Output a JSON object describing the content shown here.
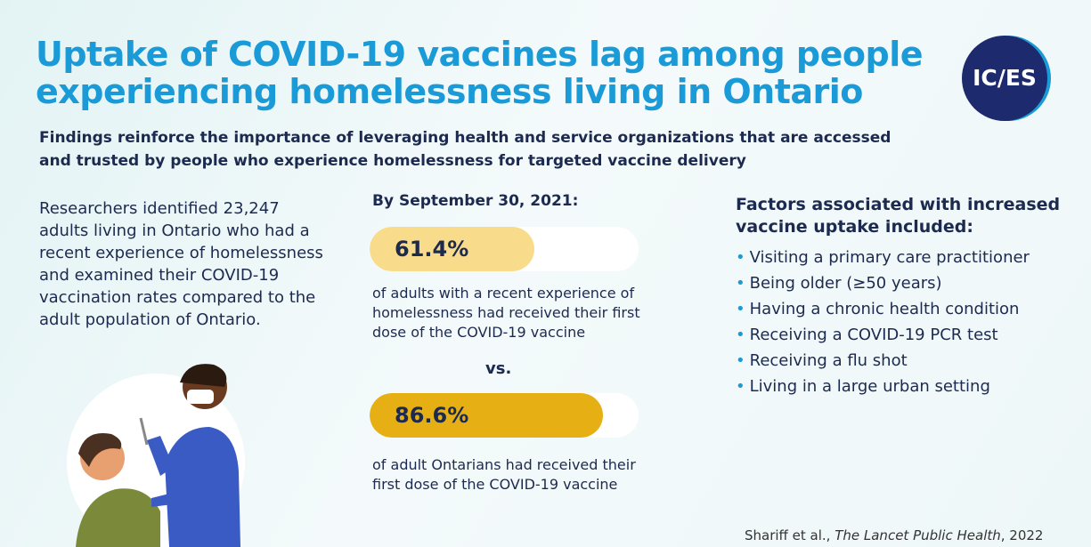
{
  "header": {
    "title_lines": [
      "Uptake of COVID-19 vaccines lag among people",
      "experiencing homelessness living in Ontario"
    ],
    "subtitle_lines": [
      "Findings reinforce the importance of leveraging health and service organizations that are accessed",
      "and trusted by people who experience homelessness for targeted vaccine delivery"
    ],
    "logo": "IC/ES"
  },
  "intro_lines": [
    "Researchers identified 23,247",
    "adults living in Ontario who had a",
    "recent experience of homelessness",
    "and examined their COVID-19",
    "vaccination rates compared to the",
    "adult population of Ontario."
  ],
  "stats": {
    "heading": "By September 30, 2021:",
    "xlim": [
      0,
      100
    ],
    "separator": "vs.",
    "items": [
      {
        "value": 61.4,
        "value_label": "61.4%",
        "color": "#f8dc8c",
        "text_lines": [
          "of adults with a recent experience of",
          "homelessness had received their first",
          "dose of the COVID-19 vaccine"
        ]
      },
      {
        "value": 86.6,
        "value_label": "86.6%",
        "color": "#e6b015",
        "text_lines": [
          "of adult Ontarians had received their",
          "first dose of the COVID-19 vaccine"
        ]
      }
    ]
  },
  "factors": {
    "heading_lines": [
      "Factors associated with increased",
      "vaccine uptake included:"
    ],
    "items": [
      "Visiting a primary care practitioner",
      "Being older (≥50 years)",
      "Having a chronic health condition",
      "Receiving a COVID-19 PCR test",
      "Receiving a flu shot",
      "Living in a large urban setting"
    ]
  },
  "citation": {
    "authors": "Shariff et al.,",
    "journal": "The Lancet Public Health",
    "year": ", 2022"
  }
}
